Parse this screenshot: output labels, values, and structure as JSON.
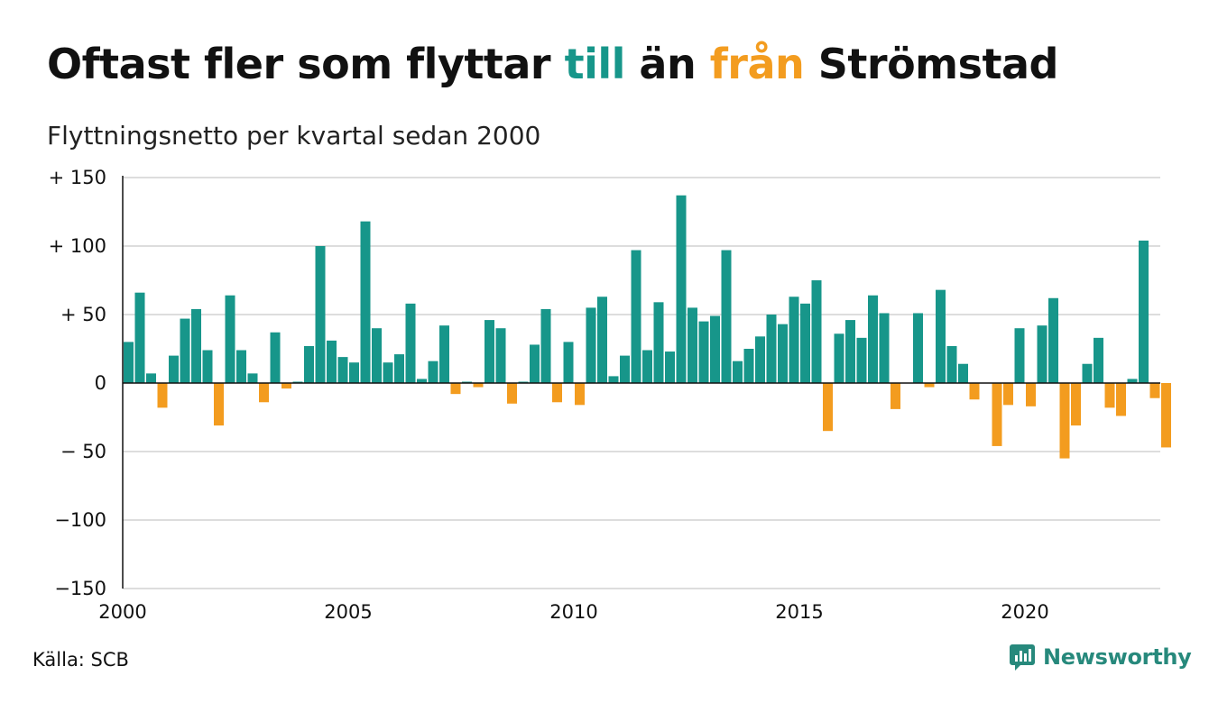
{
  "title": {
    "part1": "Oftast fler som flyttar ",
    "word_to": "till",
    "part2": " än ",
    "word_from": "från",
    "part3": " Strömstad"
  },
  "subtitle": "Flyttningsnetto per kvartal sedan 2000",
  "source": "Källa: SCB",
  "brand": "Newsworthy",
  "colors": {
    "positive": "#17968a",
    "negative": "#f39c1f",
    "grid": "#dddddd",
    "axis": "#111111"
  },
  "chart_data": {
    "type": "bar",
    "x_start": "2000-Q1",
    "x_tick_labels": [
      "2000",
      "2005",
      "2010",
      "2015",
      "2020"
    ],
    "y_tick_labels": [
      "+ 150",
      "+ 100",
      "+  50",
      "0",
      "− 50",
      "−100",
      "−150"
    ],
    "ylim": [
      -150,
      150
    ],
    "y_ticks": [
      150,
      100,
      50,
      0,
      -50,
      -100,
      -150
    ],
    "values": [
      30,
      66,
      7,
      -18,
      20,
      47,
      54,
      24,
      -31,
      64,
      24,
      7,
      -14,
      37,
      -4,
      1,
      27,
      100,
      31,
      19,
      15,
      118,
      40,
      15,
      21,
      58,
      3,
      16,
      42,
      -8,
      1,
      -3,
      46,
      40,
      -15,
      1,
      28,
      54,
      -14,
      30,
      -16,
      55,
      63,
      5,
      20,
      97,
      24,
      59,
      23,
      137,
      55,
      45,
      49,
      97,
      16,
      25,
      34,
      50,
      43,
      63,
      58,
      75,
      -35,
      36,
      46,
      33,
      64,
      51,
      -19,
      0,
      51,
      -3,
      68,
      27,
      14,
      -12,
      0,
      -46,
      -16,
      40,
      -17,
      42,
      62,
      -55,
      -31,
      14,
      33,
      -18,
      -24,
      3,
      104,
      -11,
      -47
    ],
    "grid": true,
    "legend": "none"
  }
}
